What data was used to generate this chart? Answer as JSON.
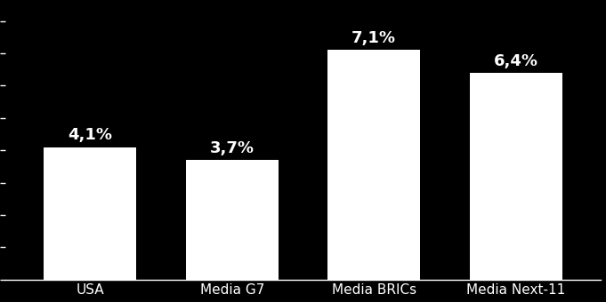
{
  "categories": [
    "USA",
    "Media G7",
    "Media BRICs",
    "Media Next-11"
  ],
  "values": [
    4.1,
    3.7,
    7.1,
    6.4
  ],
  "labels": [
    "4,1%",
    "3,7%",
    "7,1%",
    "6,4%"
  ],
  "bar_color": "#ffffff",
  "bar_edgecolor": "#ffffff",
  "background_color": "#000000",
  "text_color": "#ffffff",
  "axis_color": "#ffffff",
  "ylim": [
    0,
    8.5
  ],
  "bar_width": 0.65,
  "label_fontsize": 13,
  "tick_fontsize": 11,
  "ytick_spacing": 1.0
}
